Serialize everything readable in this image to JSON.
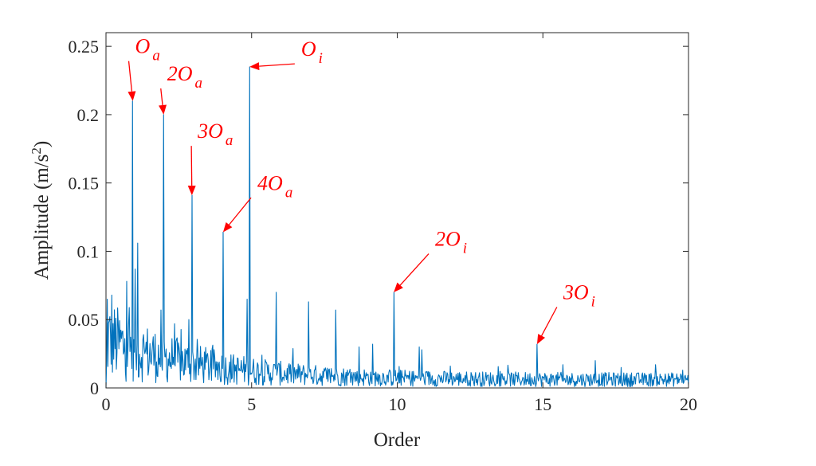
{
  "chart_data": {
    "type": "line",
    "xlabel": "Order",
    "ylabel": {
      "prefix": "Amplitude (m/s",
      "sup": "2",
      "suffix": ")"
    },
    "xlim": [
      0,
      20
    ],
    "ylim": [
      0,
      0.26
    ],
    "xticks": [
      0,
      5,
      10,
      15,
      20
    ],
    "xtick_labels": [
      "0",
      "5",
      "10",
      "15",
      "20"
    ],
    "yticks": [
      0,
      0.05,
      0.1,
      0.15,
      0.2,
      0.25
    ],
    "ytick_labels": [
      "0",
      "0.05",
      "0.1",
      "0.15",
      "0.2",
      "0.25"
    ],
    "grid": false,
    "line_color": "#0072bd",
    "annotation_color": "#ff0000",
    "peaks": [
      {
        "x": 0.05,
        "y": 0.065
      },
      {
        "x": 0.2,
        "y": 0.068
      },
      {
        "x": 0.72,
        "y": 0.078
      },
      {
        "x": 0.92,
        "y": 0.21
      },
      {
        "x": 1.0,
        "y": 0.087
      },
      {
        "x": 1.08,
        "y": 0.106
      },
      {
        "x": 1.9,
        "y": 0.057
      },
      {
        "x": 1.98,
        "y": 0.2
      },
      {
        "x": 2.85,
        "y": 0.05
      },
      {
        "x": 2.95,
        "y": 0.141
      },
      {
        "x": 4.02,
        "y": 0.114
      },
      {
        "x": 4.85,
        "y": 0.065
      },
      {
        "x": 4.93,
        "y": 0.235
      },
      {
        "x": 5.85,
        "y": 0.07
      },
      {
        "x": 6.95,
        "y": 0.063
      },
      {
        "x": 7.88,
        "y": 0.057
      },
      {
        "x": 8.7,
        "y": 0.03
      },
      {
        "x": 9.15,
        "y": 0.032
      },
      {
        "x": 9.88,
        "y": 0.07
      },
      {
        "x": 10.75,
        "y": 0.03
      },
      {
        "x": 10.85,
        "y": 0.028
      },
      {
        "x": 14.8,
        "y": 0.032
      },
      {
        "x": 15.7,
        "y": 0.017
      },
      {
        "x": 16.8,
        "y": 0.02
      },
      {
        "x": 17.7,
        "y": 0.015
      },
      {
        "x": 19.8,
        "y": 0.013
      }
    ],
    "annotations": [
      {
        "base": "O",
        "sub": "a",
        "target": [
          0.92,
          0.21
        ],
        "label_at": [
          1.0,
          0.245
        ]
      },
      {
        "base": "2O",
        "sub": "a",
        "target": [
          1.98,
          0.2
        ],
        "label_at": [
          2.1,
          0.225
        ]
      },
      {
        "base": "3O",
        "sub": "a",
        "target": [
          2.95,
          0.141
        ],
        "label_at": [
          3.15,
          0.183
        ]
      },
      {
        "base": "4O",
        "sub": "a",
        "target": [
          4.02,
          0.114
        ],
        "label_at": [
          5.2,
          0.145
        ]
      },
      {
        "base": "O",
        "sub": "i",
        "target": [
          4.93,
          0.235
        ],
        "label_at": [
          6.7,
          0.243
        ]
      },
      {
        "base": "2O",
        "sub": "i",
        "target": [
          9.88,
          0.07
        ],
        "label_at": [
          11.3,
          0.104
        ]
      },
      {
        "base": "3O",
        "sub": "i",
        "target": [
          14.8,
          0.032
        ],
        "label_at": [
          15.7,
          0.065
        ]
      }
    ]
  }
}
